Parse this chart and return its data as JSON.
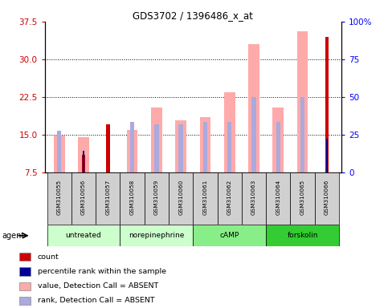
{
  "title": "GDS3702 / 1396486_x_at",
  "samples": [
    "GSM310055",
    "GSM310056",
    "GSM310057",
    "GSM310058",
    "GSM310059",
    "GSM310060",
    "GSM310061",
    "GSM310062",
    "GSM310063",
    "GSM310064",
    "GSM310065",
    "GSM310066"
  ],
  "groups": [
    {
      "name": "untreated",
      "indices": [
        0,
        1,
        2
      ],
      "color": "#aaffaa"
    },
    {
      "name": "norepinephrine",
      "indices": [
        3,
        4,
        5
      ],
      "color": "#aaffaa"
    },
    {
      "name": "cAMP",
      "indices": [
        6,
        7,
        8
      ],
      "color": "#66ee66"
    },
    {
      "name": "forskolin",
      "indices": [
        9,
        10,
        11
      ],
      "color": "#33dd33"
    }
  ],
  "value_absent": [
    14.8,
    14.5,
    null,
    16.0,
    20.5,
    17.8,
    18.5,
    23.5,
    33.0,
    20.5,
    35.5,
    null
  ],
  "rank_absent": [
    15.8,
    null,
    null,
    17.5,
    17.0,
    17.0,
    17.5,
    17.5,
    22.5,
    17.5,
    22.5,
    null
  ],
  "count": [
    null,
    11.0,
    17.0,
    null,
    null,
    null,
    null,
    null,
    null,
    null,
    null,
    34.5
  ],
  "percentile_rank": [
    null,
    14.5,
    null,
    null,
    null,
    null,
    null,
    null,
    null,
    null,
    null,
    22.5
  ],
  "ylim_left": [
    7.5,
    37.5
  ],
  "ylim_right": [
    0,
    100
  ],
  "yticks_left": [
    7.5,
    15.0,
    22.5,
    30.0,
    37.5
  ],
  "yticks_right": [
    0,
    25,
    50,
    75,
    100
  ],
  "color_count": "#cc0000",
  "color_percentile": "#000099",
  "color_value_absent": "#ffaaaa",
  "color_rank_absent": "#aaaadd",
  "background_color": "#ffffff",
  "group_colors": [
    "#ccffcc",
    "#ccffcc",
    "#88ee88",
    "#44dd44"
  ]
}
